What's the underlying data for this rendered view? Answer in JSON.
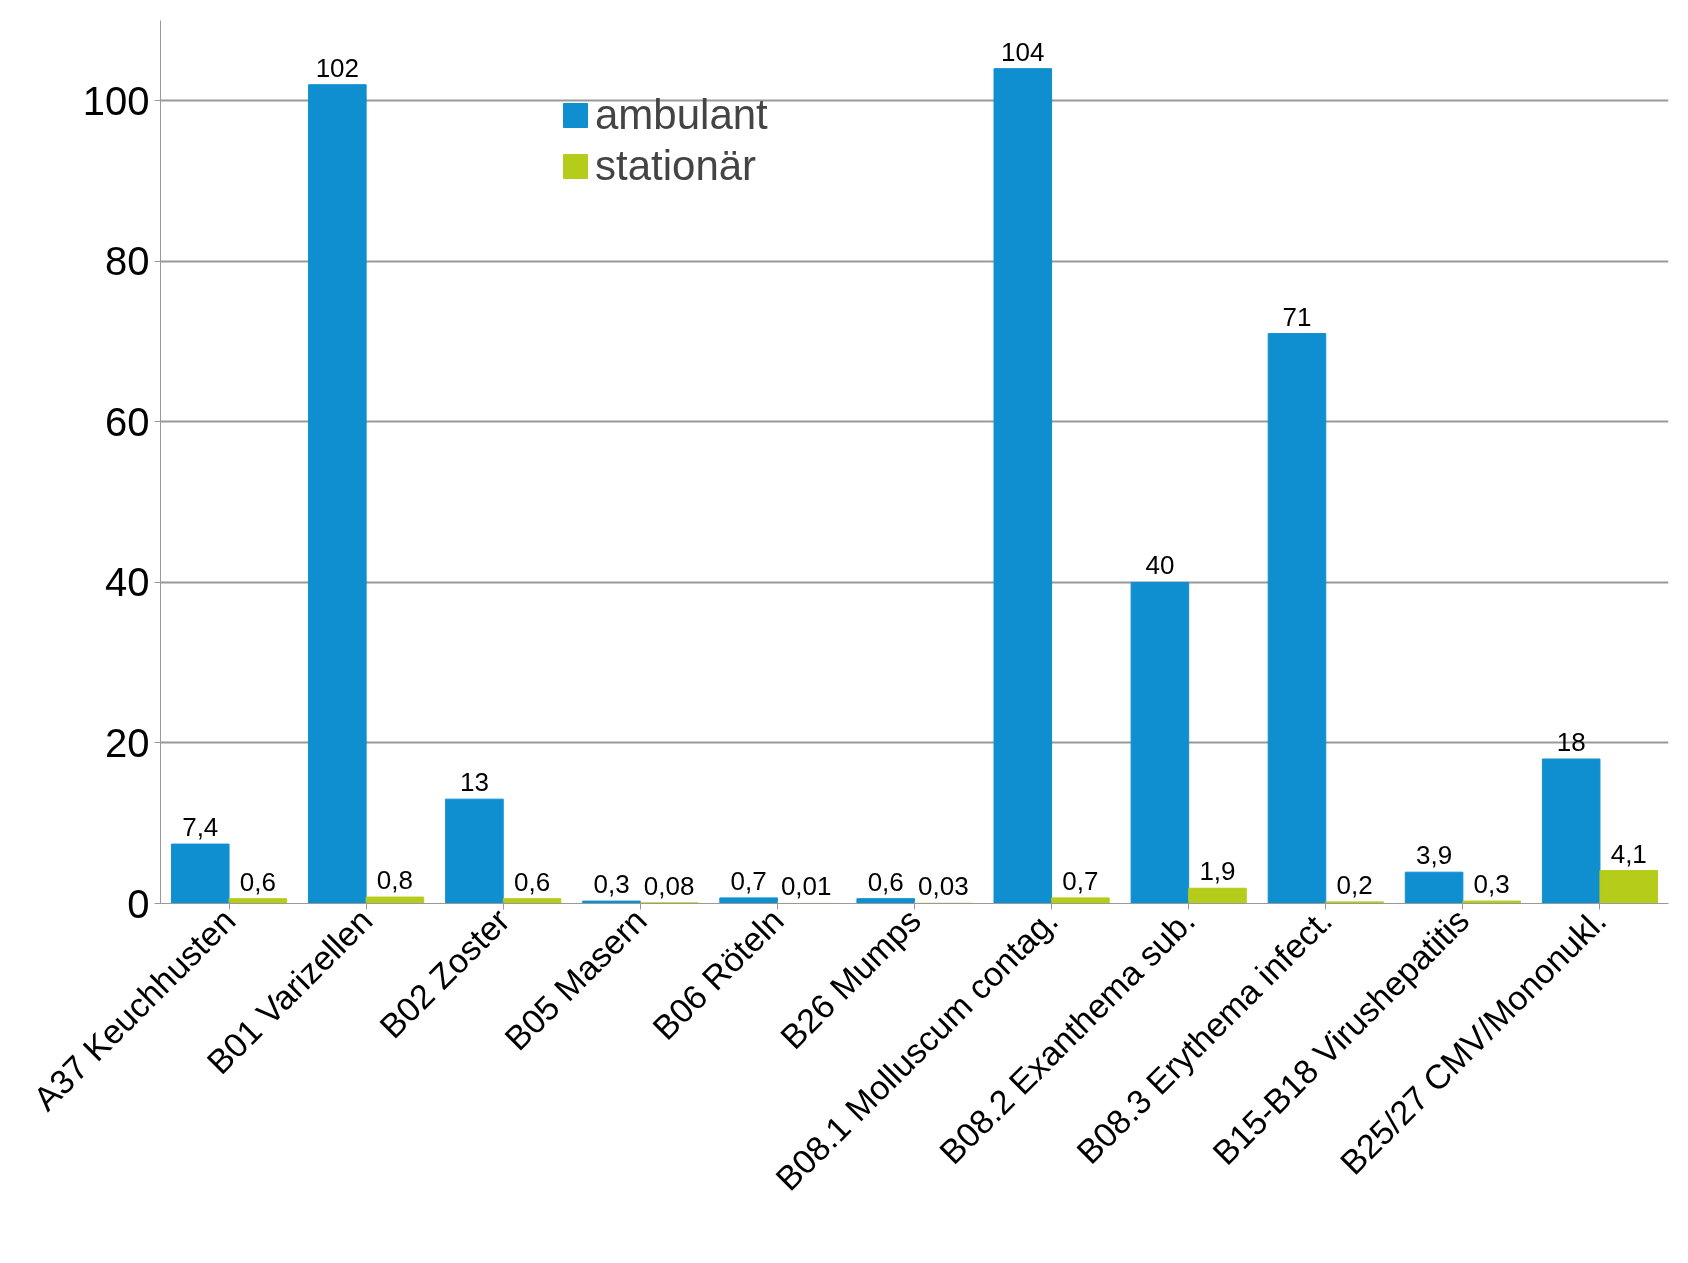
{
  "chart_data": {
    "type": "bar",
    "categories": [
      "A37 Keuchhusten",
      "B01 Varizellen",
      "B02 Zoster",
      "B05 Masern",
      "B06 Röteln",
      "B26 Mumps",
      "B08.1 Molluscum contag.",
      "B08.2 Exanthema sub.",
      "B08.3 Erythema infect.",
      "B15-B18 Virushepatitis",
      "B25/27 CMV/Mononukl."
    ],
    "series": [
      {
        "name": "ambulant",
        "color": "#0f8fd0",
        "values": [
          7.4,
          102,
          13,
          0.3,
          0.7,
          0.6,
          104,
          40,
          71,
          3.9,
          18
        ],
        "value_labels": [
          "7,4",
          "102",
          "13",
          "0,3",
          "0,7",
          "0,6",
          "104",
          "40",
          "71",
          "3,9",
          "18"
        ]
      },
      {
        "name": "stationär",
        "color": "#b5cc1a",
        "values": [
          0.6,
          0.8,
          0.6,
          0.08,
          0.01,
          0.03,
          0.7,
          1.9,
          0.2,
          0.3,
          4.1
        ],
        "value_labels": [
          "0,6",
          "0,8",
          "0,6",
          "0,08",
          "0,01",
          "0,03",
          "0,7",
          "1,9",
          "0,2",
          "0,3",
          "4,1"
        ]
      }
    ],
    "ylim": [
      0,
      110
    ],
    "yticks": [
      0,
      20,
      40,
      60,
      80,
      100
    ],
    "grid": "y",
    "legend": "top"
  }
}
